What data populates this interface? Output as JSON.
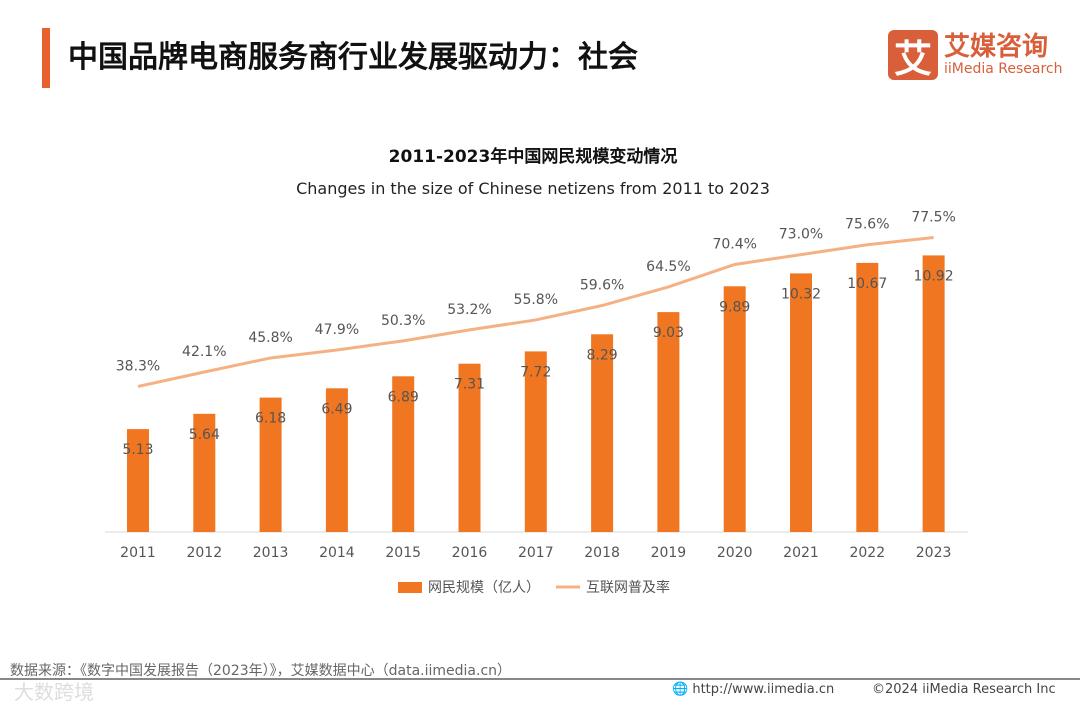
{
  "header": {
    "title": "中国品牌电商服务商行业发展驱动力：社会"
  },
  "logo": {
    "mark": "艾",
    "cn": "艾媒咨询",
    "en": "iiMedia Research"
  },
  "chart_data": {
    "type": "bar+line",
    "title": "2011-2023年中国网民规模变动情况",
    "subtitle": "Changes in the size of Chinese netizens from 2011 to 2023",
    "categories": [
      "2011",
      "2012",
      "2013",
      "2014",
      "2015",
      "2016",
      "2017",
      "2018",
      "2019",
      "2020",
      "2021",
      "2022",
      "2023"
    ],
    "series": [
      {
        "name": "网民规模（亿人）",
        "type": "bar",
        "color": "#f07622",
        "values": [
          5.13,
          5.64,
          6.18,
          6.49,
          6.89,
          7.31,
          7.72,
          8.29,
          9.03,
          9.89,
          10.32,
          10.67,
          10.92
        ]
      },
      {
        "name": "互联网普及率",
        "type": "line",
        "color": "#f4b183",
        "values": [
          38.3,
          42.1,
          45.8,
          47.9,
          50.3,
          53.2,
          55.8,
          59.6,
          64.5,
          70.4,
          73.0,
          75.6,
          77.5
        ]
      }
    ],
    "bar_ylim": [
      1.7,
      13
    ],
    "line_ylim": [
      0,
      100
    ],
    "legend": "bottom"
  },
  "footer": {
    "source": "数据来源：《数字中国发展报告（2023年）》，艾媒数据中心（data.iimedia.cn）",
    "url": "http://www.iimedia.cn",
    "copyright": "©2024  iiMedia Research  Inc",
    "watermark": "大数跨境"
  }
}
